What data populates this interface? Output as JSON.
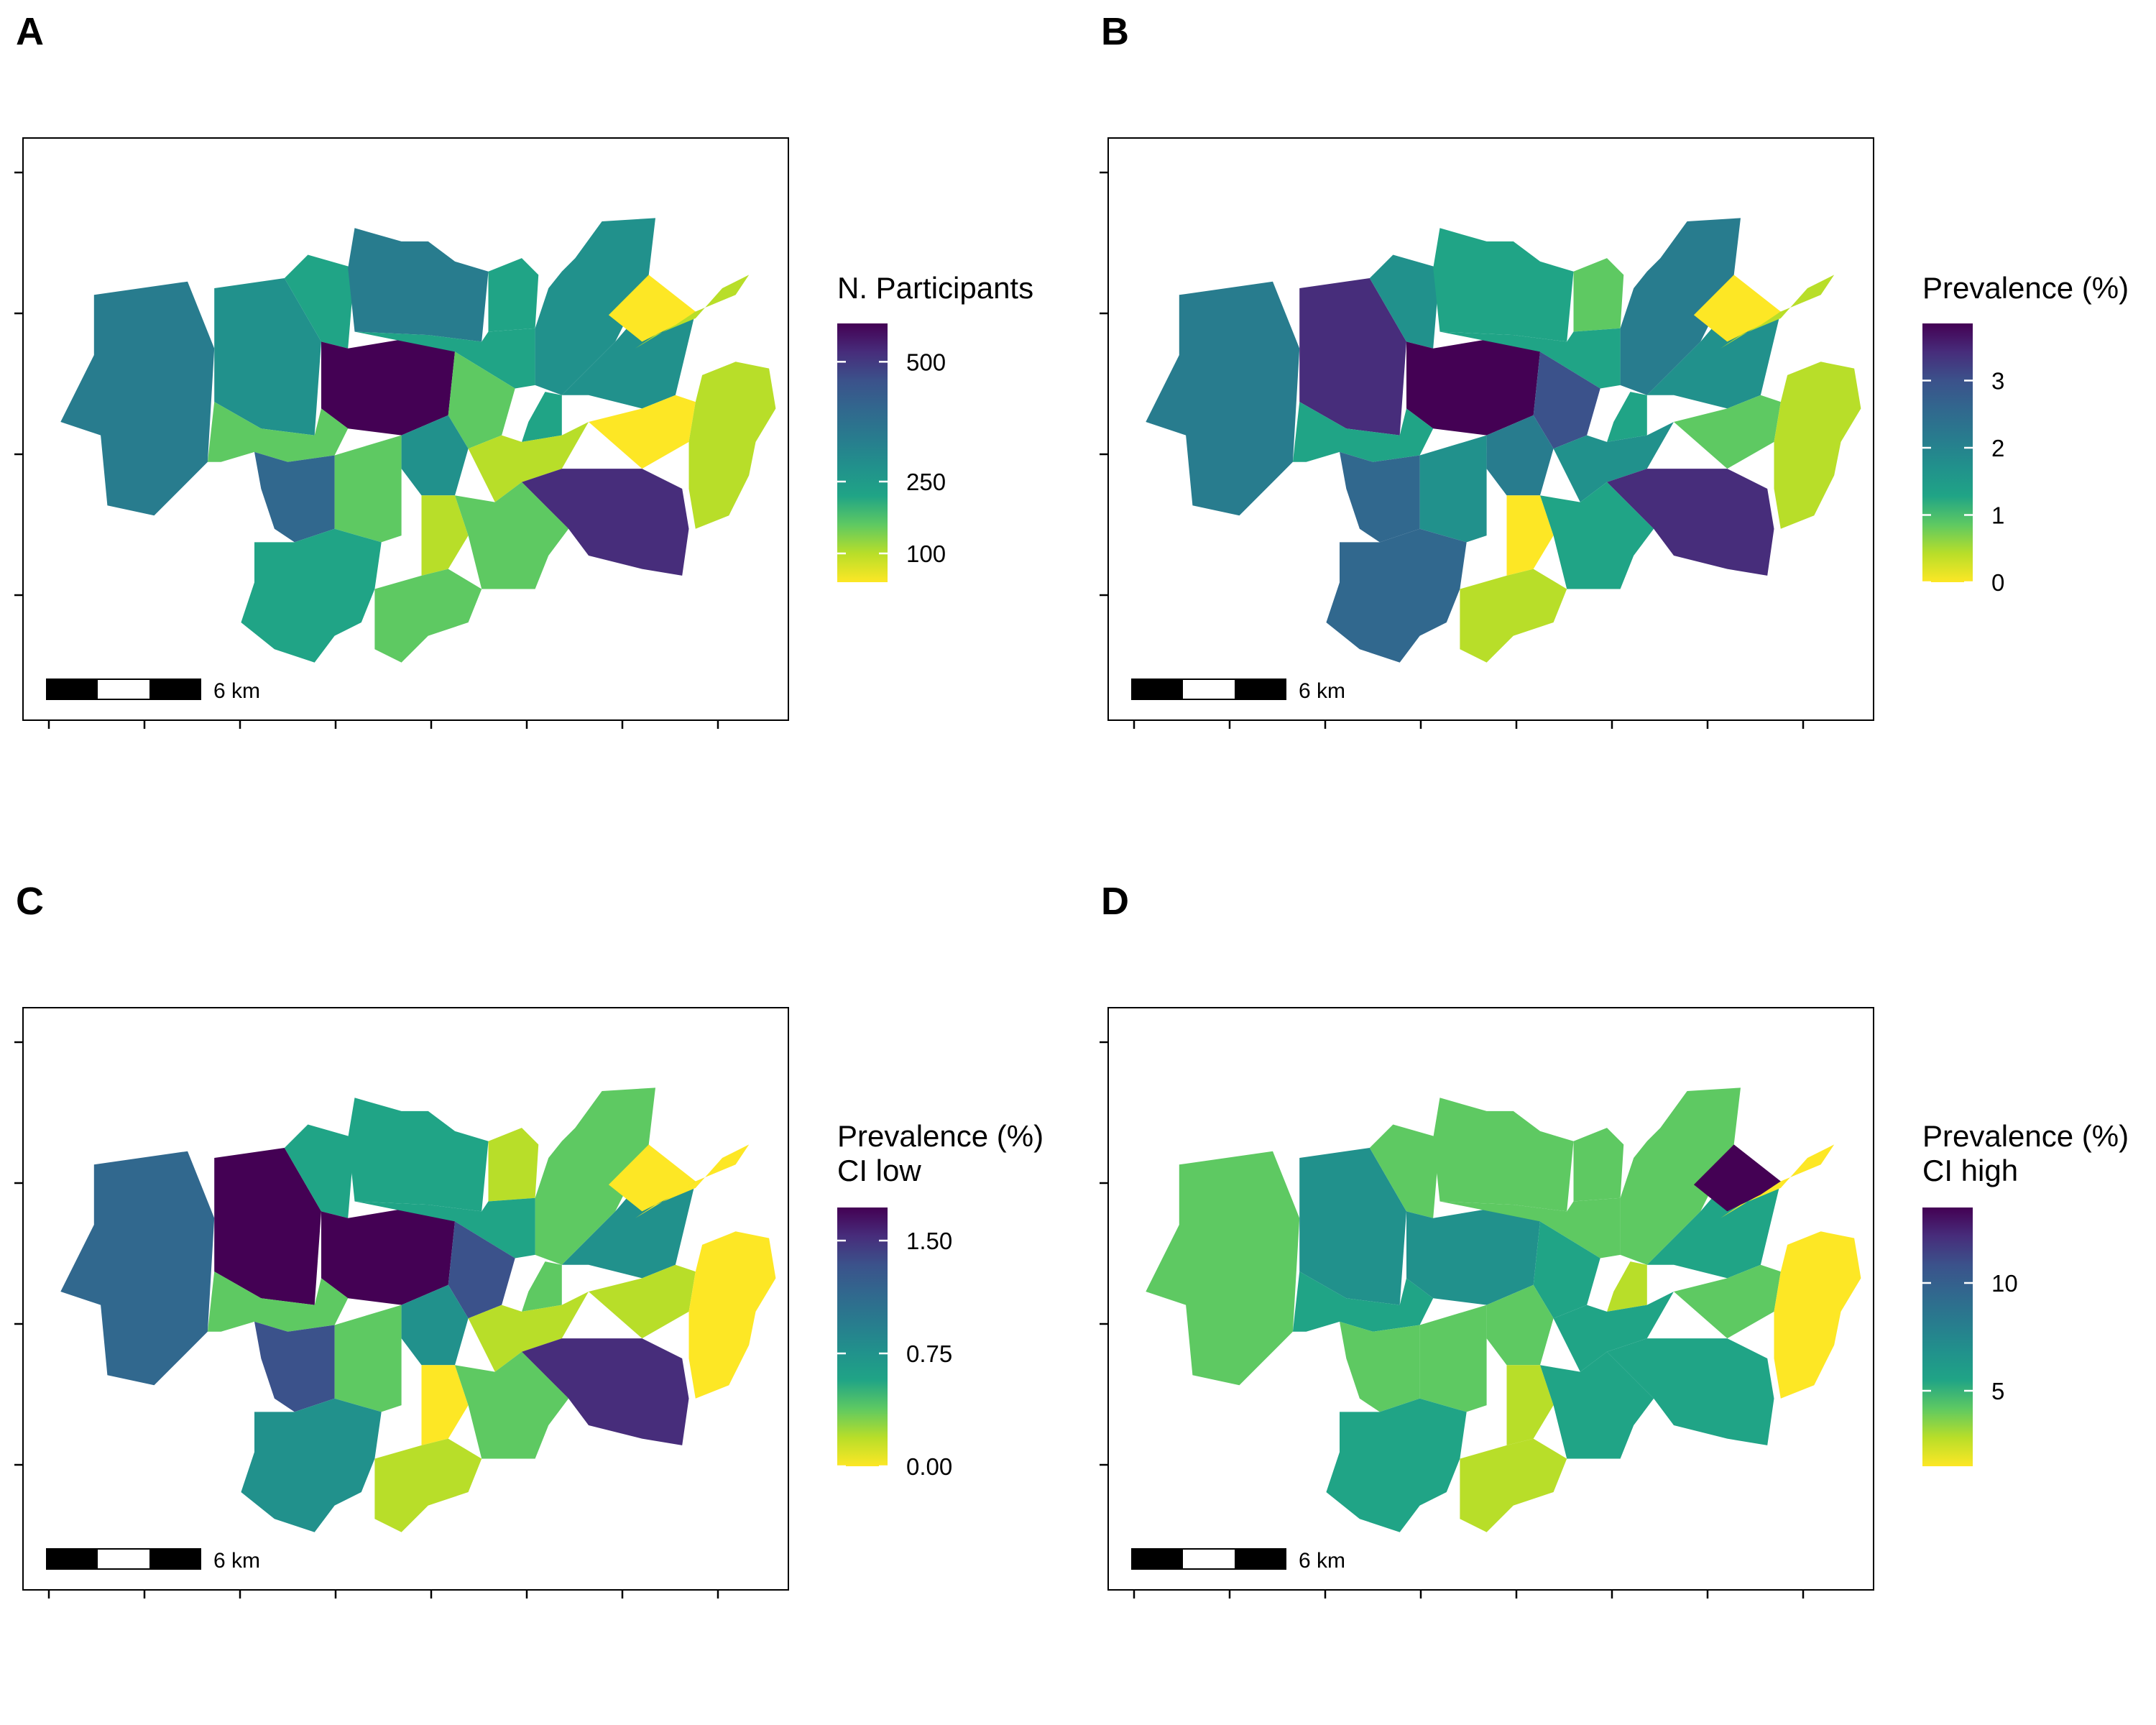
{
  "palette": [
    "#fde725",
    "#b8de29",
    "#5ec962",
    "#20a486",
    "#21918c",
    "#287c8e",
    "#31688e",
    "#3b528b",
    "#472d7b",
    "#440154"
  ],
  "scale_bar_label": "6 km",
  "panels": [
    {
      "letter": "A",
      "legend_title_lines": [
        "N. Participants"
      ],
      "legend_ticks": [
        {
          "label": "500",
          "value": 500
        },
        {
          "label": "250",
          "value": 250
        },
        {
          "label": "100",
          "value": 100
        }
      ],
      "legend_min": 40,
      "legend_max": 580,
      "fills": [
        5,
        4,
        3,
        5,
        3,
        4,
        9,
        3,
        2,
        2,
        3,
        4,
        6,
        2,
        4,
        1,
        8,
        1,
        2,
        0,
        1,
        1,
        0,
        3,
        2
      ]
    },
    {
      "letter": "B",
      "legend_title_lines": [
        "Prevalence (%)"
      ],
      "legend_ticks": [
        {
          "label": "3",
          "value": 3
        },
        {
          "label": "2",
          "value": 2
        },
        {
          "label": "1",
          "value": 1
        },
        {
          "label": "0",
          "value": 0
        }
      ],
      "legend_min": 0,
      "legend_max": 3.85,
      "fills": [
        5,
        8,
        4,
        3,
        2,
        5,
        9,
        3,
        7,
        3,
        3,
        4,
        6,
        4,
        5,
        4,
        8,
        0,
        3,
        2,
        1,
        1,
        0,
        6,
        1
      ]
    },
    {
      "letter": "C",
      "legend_title_lines": [
        "Prevalence (%)",
        "CI low"
      ],
      "legend_ticks": [
        {
          "label": "1.50",
          "value": 1.5
        },
        {
          "label": "0.75",
          "value": 0.75
        },
        {
          "label": "0.00",
          "value": 0
        }
      ],
      "legend_min": 0,
      "legend_max": 1.72,
      "fills": [
        6,
        9,
        3,
        3,
        1,
        2,
        9,
        3,
        7,
        2,
        2,
        4,
        7,
        2,
        4,
        1,
        8,
        0,
        2,
        1,
        0,
        0,
        0,
        4,
        1
      ]
    },
    {
      "letter": "D",
      "legend_title_lines": [
        "Prevalence (%)",
        "CI high"
      ],
      "legend_ticks": [
        {
          "label": "10",
          "value": 10
        },
        {
          "label": "5",
          "value": 5
        }
      ],
      "legend_min": 1.5,
      "legend_max": 13.5,
      "fills": [
        2,
        4,
        2,
        2,
        2,
        2,
        4,
        2,
        3,
        3,
        1,
        3,
        2,
        2,
        2,
        3,
        3,
        1,
        3,
        2,
        0,
        0,
        9,
        3,
        1
      ]
    }
  ]
}
